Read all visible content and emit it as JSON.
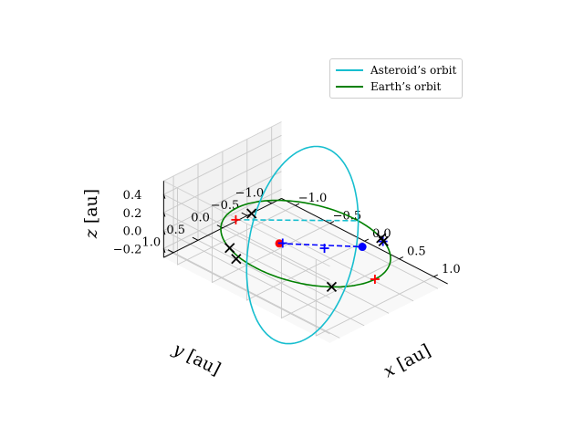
{
  "chart_data": {
    "type": "line",
    "projection": "3d",
    "xlabel": "$x$ [au]",
    "ylabel": "$y$ [au]",
    "zlabel": "$z$ [au]",
    "xlim": [
      -1.2,
      1.2
    ],
    "ylim": [
      -1.2,
      1.2
    ],
    "zlim": [
      -0.3,
      0.55
    ],
    "x_ticks": [
      "−1.0",
      "−0.5",
      "0.0",
      "0.5",
      "1.0"
    ],
    "y_ticks": [
      "−1.0",
      "−0.5",
      "0.0",
      "0.5",
      "1.0"
    ],
    "z_ticks": [
      "−0.2",
      "0.0",
      "0.2",
      "0.4"
    ],
    "grid": true,
    "legend_position": "top-right",
    "series": [
      {
        "name": "Asteroid’s orbit",
        "color": "#17becf",
        "style": "solid"
      },
      {
        "name": "Earth’s orbit",
        "color": "#008000",
        "style": "solid"
      }
    ],
    "earth_orbit": {
      "center": [
        0,
        0,
        0
      ],
      "radius": 1.0
    },
    "asteroid_orbit": {
      "perihelion": [
        0.05,
        -1.0,
        0.0
      ],
      "aphelion": [
        -0.3,
        1.0,
        0.42
      ]
    },
    "asteroid_apsides_line": {
      "from": [
        -0.3,
        1.0,
        0.42
      ],
      "to": [
        0.05,
        -1.0,
        0.0
      ],
      "color": "#17becf",
      "style": "dashed"
    },
    "earth_asteroid_line": {
      "from": [
        -0.14,
        0.34,
        0.04
      ],
      "to": [
        0.45,
        -0.52,
        0.0
      ],
      "color": "#0000ff",
      "style": "dashed"
    },
    "markers": {
      "red_dot": [
        -0.14,
        0.34,
        0.04
      ],
      "blue_dot": [
        0.45,
        -0.52,
        0.0
      ],
      "red_plus": [
        [
          -0.3,
          1.0,
          0.42
        ],
        [
          1.0,
          0.0,
          0.0
        ]
      ],
      "blue_plus": [
        [
          -0.12,
          0.3,
          0.04
        ],
        [
          0.2,
          -0.1,
          0.0
        ],
        [
          0.52,
          -0.84,
          0.0
        ]
      ],
      "black_x": [
        [
          -0.2,
          0.82,
          0.48
        ],
        [
          -0.48,
          0.87,
          0.0
        ],
        [
          -0.33,
          0.95,
          -0.04
        ],
        [
          0.46,
          -0.89,
          0.0
        ],
        [
          0.52,
          -0.85,
          0.0
        ],
        [
          0.8,
          0.6,
          0.0
        ]
      ]
    }
  }
}
